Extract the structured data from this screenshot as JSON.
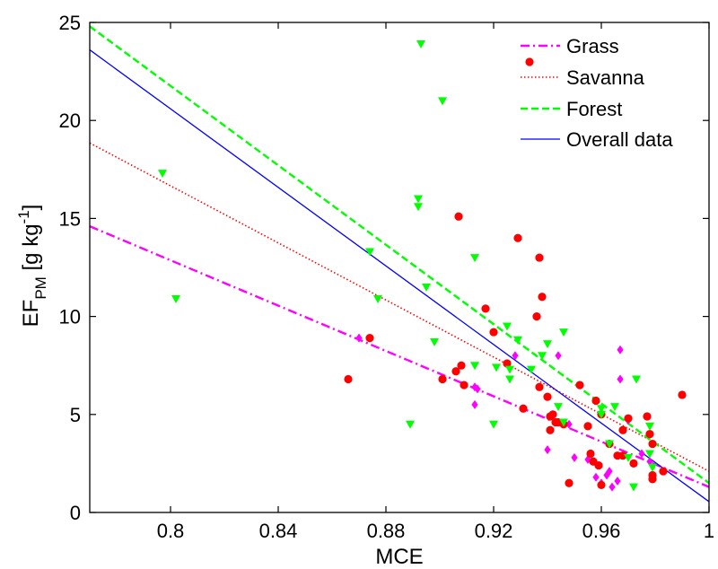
{
  "chart_data": {
    "type": "scatter",
    "xlabel": "MCE",
    "ylabel": {
      "main": "EF",
      "sub": "PM",
      "unit_open": " [g kg",
      "unit_sup": "-1",
      "unit_close": "]"
    },
    "xlim": [
      0.77,
      1.0
    ],
    "ylim": [
      0,
      25
    ],
    "x_ticks": [
      0.8,
      0.84,
      0.88,
      0.92,
      0.96,
      1
    ],
    "x_tick_labels": [
      "0.8",
      "0.84",
      "0.88",
      "0.92",
      "0.96",
      "1"
    ],
    "y_ticks": [
      0,
      5,
      10,
      15,
      20,
      25
    ],
    "y_tick_labels": [
      "0",
      "5",
      "10",
      "15",
      "20",
      "25"
    ],
    "grid": false,
    "legend_position": "top-right",
    "legend": [
      {
        "label": "Grass",
        "key": "grass"
      },
      {
        "label": "Savanna",
        "key": "savanna"
      },
      {
        "label": "Forest",
        "key": "forest"
      },
      {
        "label": "Overall data",
        "key": "overall"
      }
    ],
    "colors": {
      "grass": "#ff00ff",
      "savanna": "#ff0000",
      "forest": "#00ff00",
      "overall": "#0000ff"
    },
    "fit_lines": [
      {
        "key": "grass",
        "style": "dash-dot",
        "x": [
          0.77,
          1.0
        ],
        "y": [
          14.6,
          1.3
        ]
      },
      {
        "key": "savanna",
        "style": "dotted",
        "x": [
          0.77,
          1.0
        ],
        "y": [
          18.85,
          2.1
        ]
      },
      {
        "key": "forest",
        "style": "dashed",
        "x": [
          0.77,
          1.0
        ],
        "y": [
          24.8,
          1.5
        ]
      },
      {
        "key": "overall",
        "style": "solid",
        "x": [
          0.77,
          1.0
        ],
        "y": [
          23.6,
          0.55
        ]
      }
    ],
    "series": [
      {
        "name": "Grass",
        "key": "grass",
        "marker": "diamond",
        "points": [
          [
            0.87,
            8.9
          ],
          [
            0.913,
            6.4
          ],
          [
            0.914,
            6.3
          ],
          [
            0.913,
            5.5
          ],
          [
            0.928,
            8.0
          ],
          [
            0.94,
            3.2
          ],
          [
            0.944,
            8.0
          ],
          [
            0.948,
            4.5
          ],
          [
            0.95,
            2.8
          ],
          [
            0.955,
            2.7
          ],
          [
            0.958,
            1.8
          ],
          [
            0.96,
            1.5
          ],
          [
            0.962,
            1.9
          ],
          [
            0.963,
            2.1
          ],
          [
            0.964,
            1.3
          ],
          [
            0.966,
            1.6
          ],
          [
            0.967,
            8.3
          ],
          [
            0.967,
            6.8
          ],
          [
            0.97,
            4.7
          ],
          [
            0.975,
            3.0
          ],
          [
            0.978,
            2.6
          ]
        ]
      },
      {
        "name": "Savanna",
        "key": "savanna",
        "marker": "circle",
        "points": [
          [
            0.866,
            6.8
          ],
          [
            0.874,
            8.9
          ],
          [
            0.901,
            6.8
          ],
          [
            0.906,
            7.2
          ],
          [
            0.907,
            15.1
          ],
          [
            0.908,
            7.5
          ],
          [
            0.909,
            6.5
          ],
          [
            0.917,
            10.4
          ],
          [
            0.92,
            9.2
          ],
          [
            0.925,
            7.6
          ],
          [
            0.929,
            14.0
          ],
          [
            0.931,
            5.3
          ],
          [
            0.936,
            10.0
          ],
          [
            0.937,
            13.0
          ],
          [
            0.937,
            6.4
          ],
          [
            0.938,
            11.0
          ],
          [
            0.94,
            5.9
          ],
          [
            0.941,
            4.9
          ],
          [
            0.941,
            4.2
          ],
          [
            0.942,
            5.0
          ],
          [
            0.943,
            4.6
          ],
          [
            0.944,
            4.6
          ],
          [
            0.946,
            4.5
          ],
          [
            0.948,
            1.5
          ],
          [
            0.952,
            6.5
          ],
          [
            0.955,
            4.4
          ],
          [
            0.956,
            3.0
          ],
          [
            0.957,
            2.6
          ],
          [
            0.958,
            5.7
          ],
          [
            0.959,
            2.4
          ],
          [
            0.96,
            1.4
          ],
          [
            0.96,
            5.0
          ],
          [
            0.963,
            3.5
          ],
          [
            0.966,
            2.9
          ],
          [
            0.968,
            4.2
          ],
          [
            0.968,
            2.9
          ],
          [
            0.97,
            4.8
          ],
          [
            0.972,
            2.5
          ],
          [
            0.977,
            4.9
          ],
          [
            0.978,
            4.0
          ],
          [
            0.979,
            3.5
          ],
          [
            0.979,
            1.9
          ],
          [
            0.983,
            2.1
          ],
          [
            0.99,
            6.0
          ],
          [
            0.979,
            1.7
          ]
        ]
      },
      {
        "name": "Forest",
        "key": "forest",
        "marker": "triangle-down",
        "points": [
          [
            0.797,
            17.3
          ],
          [
            0.802,
            10.9
          ],
          [
            0.874,
            13.3
          ],
          [
            0.877,
            10.9
          ],
          [
            0.889,
            4.5
          ],
          [
            0.892,
            16.0
          ],
          [
            0.892,
            15.6
          ],
          [
            0.893,
            23.9
          ],
          [
            0.895,
            11.5
          ],
          [
            0.898,
            8.7
          ],
          [
            0.901,
            21.0
          ],
          [
            0.913,
            13.0
          ],
          [
            0.913,
            7.5
          ],
          [
            0.92,
            4.5
          ],
          [
            0.921,
            7.4
          ],
          [
            0.925,
            9.5
          ],
          [
            0.926,
            6.8
          ],
          [
            0.926,
            7.3
          ],
          [
            0.929,
            8.8
          ],
          [
            0.934,
            7.3
          ],
          [
            0.938,
            8.0
          ],
          [
            0.94,
            8.6
          ],
          [
            0.944,
            5.4
          ],
          [
            0.946,
            4.6
          ],
          [
            0.946,
            9.2
          ],
          [
            0.96,
            5.3
          ],
          [
            0.96,
            5.0
          ],
          [
            0.963,
            3.5
          ],
          [
            0.965,
            5.4
          ],
          [
            0.97,
            2.8
          ],
          [
            0.972,
            1.3
          ],
          [
            0.973,
            6.8
          ],
          [
            0.978,
            4.4
          ],
          [
            0.978,
            3.0
          ],
          [
            0.979,
            2.3
          ]
        ]
      }
    ]
  }
}
